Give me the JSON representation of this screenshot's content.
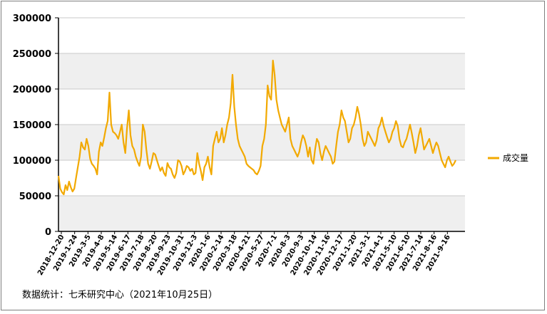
{
  "chart_data": {
    "type": "line",
    "ylim": [
      0,
      300000
    ],
    "yticks": [
      0,
      50000,
      100000,
      150000,
      200000,
      250000,
      300000
    ],
    "ytick_labels": [
      "0",
      "50000",
      "100000",
      "150000",
      "200000",
      "250000",
      "300000"
    ],
    "x_labels": [
      "2018-12-20",
      "2019-1-24",
      "2019-3-5",
      "2019-4-8",
      "2019-5-14",
      "2019-6-17",
      "2019-7-18",
      "2019-8-20",
      "2019-9-23",
      "2019-10-31",
      "2019-12-3",
      "2020-1-6",
      "2020-2-14",
      "2020-3-18",
      "2020-4-21",
      "2020-5-27",
      "2020-7-1",
      "2020-8-3",
      "2020-9-3",
      "2020-10-14",
      "2020-11-16",
      "2020-12-17",
      "2021-1-20",
      "2021-3-1",
      "2021-4-1",
      "2021-5-10",
      "2021-6-10",
      "2021-7-14",
      "2021-8-16",
      "2021-9-16"
    ],
    "grid": true,
    "legend_position": "right",
    "series": [
      {
        "name": "成交量",
        "color": "#F2A900",
        "values": [
          78000,
          60000,
          55000,
          52000,
          65000,
          58000,
          70000,
          62000,
          56000,
          60000,
          75000,
          90000,
          105000,
          125000,
          118000,
          115000,
          130000,
          120000,
          102000,
          95000,
          92000,
          88000,
          80000,
          112000,
          125000,
          120000,
          132000,
          145000,
          155000,
          195000,
          150000,
          140000,
          138000,
          135000,
          130000,
          140000,
          150000,
          125000,
          110000,
          145000,
          170000,
          135000,
          120000,
          115000,
          105000,
          98000,
          92000,
          105000,
          150000,
          140000,
          115000,
          95000,
          88000,
          98000,
          110000,
          108000,
          100000,
          92000,
          85000,
          90000,
          82000,
          78000,
          96000,
          90000,
          88000,
          80000,
          75000,
          82000,
          100000,
          98000,
          92000,
          80000,
          85000,
          92000,
          90000,
          85000,
          88000,
          80000,
          82000,
          110000,
          95000,
          85000,
          72000,
          90000,
          95000,
          105000,
          90000,
          80000,
          120000,
          130000,
          140000,
          125000,
          130000,
          145000,
          125000,
          135000,
          150000,
          160000,
          180000,
          220000,
          175000,
          150000,
          130000,
          120000,
          115000,
          110000,
          105000,
          95000,
          92000,
          90000,
          88000,
          86000,
          82000,
          80000,
          85000,
          92000,
          120000,
          130000,
          150000,
          205000,
          190000,
          185000,
          240000,
          220000,
          185000,
          170000,
          160000,
          150000,
          145000,
          140000,
          150000,
          160000,
          130000,
          120000,
          115000,
          110000,
          105000,
          112000,
          125000,
          135000,
          130000,
          120000,
          105000,
          118000,
          100000,
          95000,
          115000,
          130000,
          125000,
          110000,
          100000,
          112000,
          120000,
          115000,
          110000,
          105000,
          95000,
          98000,
          120000,
          140000,
          150000,
          170000,
          160000,
          155000,
          140000,
          125000,
          130000,
          145000,
          150000,
          160000,
          175000,
          165000,
          150000,
          130000,
          120000,
          125000,
          140000,
          135000,
          130000,
          125000,
          120000,
          128000,
          145000,
          150000,
          160000,
          148000,
          140000,
          132000,
          125000,
          130000,
          140000,
          145000,
          155000,
          148000,
          130000,
          120000,
          118000,
          125000,
          130000,
          140000,
          150000,
          138000,
          125000,
          110000,
          120000,
          135000,
          145000,
          130000,
          115000,
          120000,
          125000,
          130000,
          120000,
          110000,
          118000,
          125000,
          120000,
          110000,
          100000,
          95000,
          90000,
          100000,
          105000,
          98000,
          92000,
          95000,
          100000
        ]
      }
    ],
    "source_note": "数据统计：七禾研究中心（2021年10月25日）"
  }
}
